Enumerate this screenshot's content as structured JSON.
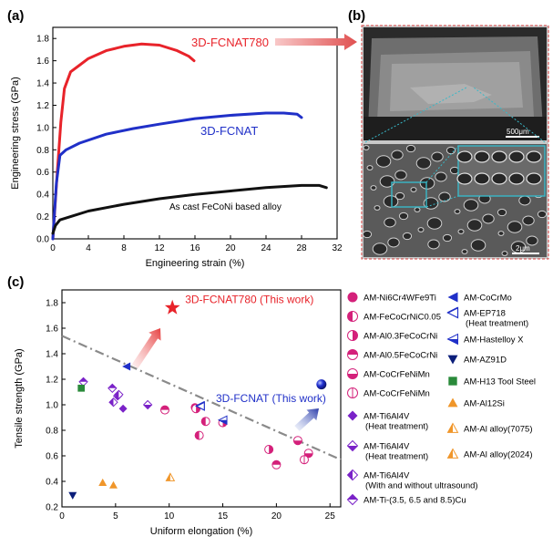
{
  "panel_labels": {
    "a": "(a)",
    "b": "(b)",
    "c": "(c)"
  },
  "colors": {
    "red": "#e8232a",
    "blue": "#2030c8",
    "black": "#111111",
    "magenta": "#d4207a",
    "purple": "#7a22c8",
    "navy": "#0b1e7a",
    "green": "#2a8a3a",
    "orange": "#f0962a",
    "dashdot": "#8a8a8a",
    "sem_frame": "#d84040",
    "sem_box": "#38b8c8"
  },
  "chart_data": [
    {
      "panel": "a",
      "type": "line",
      "xlabel": "Engineering strain (%)",
      "ylabel": "Engineering stress (GPa)",
      "xlim": [
        0,
        32
      ],
      "ylim": [
        0,
        1.9
      ],
      "xticks": [
        0,
        4,
        8,
        12,
        16,
        20,
        24,
        28,
        32
      ],
      "yticks": [
        0.0,
        0.2,
        0.4,
        0.6,
        0.8,
        1.0,
        1.2,
        1.4,
        1.6,
        1.8
      ],
      "grid": false,
      "series": [
        {
          "name": "3D-FCNAT780",
          "color": "red",
          "points": [
            [
              0,
              0
            ],
            [
              0.5,
              0.6
            ],
            [
              0.9,
              1.05
            ],
            [
              1.3,
              1.35
            ],
            [
              2,
              1.5
            ],
            [
              3,
              1.56
            ],
            [
              4,
              1.62
            ],
            [
              6,
              1.69
            ],
            [
              8,
              1.73
            ],
            [
              10,
              1.75
            ],
            [
              12,
              1.74
            ],
            [
              14,
              1.69
            ],
            [
              15.3,
              1.64
            ],
            [
              15.9,
              1.6
            ]
          ]
        },
        {
          "name": "3D-FCNAT",
          "color": "blue",
          "points": [
            [
              0,
              0
            ],
            [
              0.4,
              0.5
            ],
            [
              0.8,
              0.75
            ],
            [
              1.5,
              0.8
            ],
            [
              3,
              0.86
            ],
            [
              6,
              0.94
            ],
            [
              9,
              0.99
            ],
            [
              12,
              1.03
            ],
            [
              16,
              1.08
            ],
            [
              20,
              1.11
            ],
            [
              24,
              1.13
            ],
            [
              26,
              1.13
            ],
            [
              27.5,
              1.12
            ],
            [
              28,
              1.09
            ]
          ]
        },
        {
          "name": "As cast FeCoNi based alloy",
          "color": "black",
          "points": [
            [
              0,
              0.05
            ],
            [
              0.3,
              0.12
            ],
            [
              0.8,
              0.17
            ],
            [
              2,
              0.2
            ],
            [
              4,
              0.25
            ],
            [
              8,
              0.31
            ],
            [
              12,
              0.36
            ],
            [
              16,
              0.4
            ],
            [
              20,
              0.43
            ],
            [
              24,
              0.46
            ],
            [
              28,
              0.48
            ],
            [
              30,
              0.48
            ],
            [
              30.8,
              0.46
            ]
          ]
        }
      ],
      "annotations": [
        {
          "text": "3D-FCNAT780",
          "color": "red"
        },
        {
          "text": "3D-FCNAT",
          "color": "blue"
        },
        {
          "text": "As cast FeCoNi based alloy",
          "color": "black"
        }
      ]
    },
    {
      "panel": "c",
      "type": "scatter",
      "xlabel": "Uniform elongation (%)",
      "ylabel": "Tensile strength (GPa)",
      "xlim": [
        0,
        26
      ],
      "ylim": [
        0.2,
        1.9
      ],
      "xticks": [
        0,
        5,
        10,
        15,
        20,
        25
      ],
      "yticks": [
        0.2,
        0.4,
        0.6,
        0.8,
        1.0,
        1.2,
        1.4,
        1.6,
        1.8
      ],
      "grid": false,
      "trend_line": {
        "style": "dash-dot",
        "from": [
          0,
          1.54
        ],
        "to": [
          26,
          0.57
        ]
      },
      "highlight_points": [
        {
          "label": "3D-FCNAT780 (This work)",
          "x": 10.3,
          "y": 1.76,
          "marker": "star",
          "color": "red"
        },
        {
          "label": "3D-FCNAT (This work)",
          "x": 24.2,
          "y": 1.16,
          "marker": "sphere",
          "color": "blue"
        }
      ],
      "series": [
        {
          "name": "AM-Ni6Cr4WFe9Ti",
          "marker": "circle-full",
          "color": "magenta",
          "points": [
            [
              12.4,
              0.98
            ]
          ]
        },
        {
          "name": "AM-FeCoCrNiC0.05",
          "marker": "circle-left",
          "color": "magenta",
          "points": [
            [
              12.8,
              0.76
            ],
            [
              13.4,
              0.87
            ]
          ]
        },
        {
          "name": "AM-Al0.3FeCoCrNi",
          "marker": "circle-right",
          "color": "magenta",
          "points": [
            [
              12.5,
              0.97
            ],
            [
              15.0,
              0.86
            ],
            [
              19.3,
              0.65
            ]
          ]
        },
        {
          "name": "AM-Al0.5FeCoCrNi",
          "marker": "circle-top",
          "color": "magenta",
          "points": [
            [
              9.6,
              0.96
            ],
            [
              20.0,
              0.53
            ]
          ]
        },
        {
          "name": "AM-CoCrFeNiMn",
          "marker": "circle-bottom",
          "color": "magenta",
          "points": [
            [
              22.0,
              0.72
            ],
            [
              23.0,
              0.62
            ]
          ]
        },
        {
          "name": "AM-CoCrFeNiMn",
          "marker": "circle-open-dashed",
          "color": "magenta",
          "points": [
            [
              22.6,
              0.57
            ]
          ]
        },
        {
          "name": "AM-Ti6Al4V\n(Heat treatment)",
          "marker": "diamond-full",
          "color": "purple",
          "points": [
            [
              5.7,
              0.97
            ]
          ]
        },
        {
          "name": "AM-Ti6Al4V\n(Heat treatment)",
          "marker": "diamond-bottom",
          "color": "purple",
          "points": [
            [
              5.2,
              1.07
            ],
            [
              8.0,
              1.0
            ]
          ]
        },
        {
          "name": "AM-Ti6Al4V\n(With and without ultrasound)",
          "marker": "diamond-left",
          "color": "purple",
          "points": [
            [
              4.8,
              1.02
            ],
            [
              5.3,
              1.08
            ]
          ]
        },
        {
          "name": "AM-Ti-(3.5, 6.5 and 8.5)Cu",
          "marker": "diamond-top",
          "color": "purple",
          "points": [
            [
              2.0,
              1.18
            ],
            [
              4.7,
              1.13
            ]
          ]
        },
        {
          "name": "AM-CoCrMo",
          "marker": "tri-left-full",
          "color": "blue",
          "points": [
            [
              6.0,
              1.3
            ]
          ]
        },
        {
          "name": "AM-EP718\n(Heat treatment)",
          "marker": "tri-left-open",
          "color": "blue",
          "points": [
            [
              12.9,
              0.99
            ]
          ]
        },
        {
          "name": "AM-Hastelloy X",
          "marker": "tri-left-half",
          "color": "blue",
          "points": [
            [
              15.0,
              0.88
            ]
          ]
        },
        {
          "name": "AM-AZ91D",
          "marker": "tri-down",
          "color": "navy",
          "points": [
            [
              1.0,
              0.29
            ]
          ]
        },
        {
          "name": "AM-H13 Tool Steel",
          "marker": "square",
          "color": "green",
          "points": [
            [
              1.8,
              1.13
            ]
          ]
        },
        {
          "name": "AM-Al12Si",
          "marker": "tri-up",
          "color": "orange",
          "points": [
            [
              3.8,
              0.39
            ],
            [
              4.8,
              0.37
            ]
          ]
        },
        {
          "name": "AM-Al alloy(7075)",
          "marker": "tri-up-half",
          "color": "orange",
          "points": [
            [
              10.1,
              0.43
            ]
          ]
        },
        {
          "name": "AM-Al alloy(2024)",
          "marker": "tri-up-half",
          "color": "orange",
          "points": []
        }
      ]
    }
  ],
  "sem": {
    "from_label": "3D-FCNAT780",
    "scale_top": "500μm",
    "scale_bottom": "2μm"
  }
}
